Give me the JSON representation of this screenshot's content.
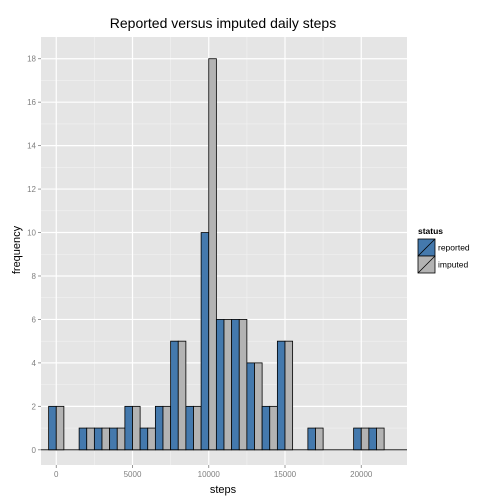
{
  "chart_data": {
    "type": "bar",
    "title": "Reported versus imputed daily steps",
    "xlabel": "steps",
    "ylabel": "frequency",
    "xlim": [
      -1000,
      23000
    ],
    "ylim": [
      -0.7,
      19.0
    ],
    "x_ticks": [
      0,
      5000,
      10000,
      15000,
      20000
    ],
    "y_ticks": [
      0,
      2,
      4,
      6,
      8,
      10,
      12,
      14,
      16,
      18
    ],
    "grid": true,
    "legend_position": "right",
    "legend_title": "status",
    "bin_width": 1000,
    "bin_centers": [
      0,
      1000,
      2000,
      3000,
      4000,
      5000,
      6000,
      7000,
      8000,
      9000,
      10000,
      11000,
      12000,
      13000,
      14000,
      15000,
      16000,
      17000,
      18000,
      19000,
      20000,
      21000,
      22000
    ],
    "series": [
      {
        "name": "reported",
        "color": "#4479ad",
        "values": [
          2,
          0,
          1,
          1,
          1,
          2,
          1,
          2,
          5,
          2,
          10,
          6,
          6,
          4,
          2,
          5,
          0,
          1,
          0,
          0,
          1,
          1,
          0
        ]
      },
      {
        "name": "imputed",
        "color": "#b3b3b3",
        "values": [
          2,
          0,
          1,
          1,
          1,
          2,
          1,
          2,
          5,
          2,
          18,
          6,
          6,
          4,
          2,
          5,
          0,
          1,
          0,
          0,
          1,
          1,
          0
        ]
      }
    ]
  },
  "colors": {
    "panel_background": "#e5e5e5",
    "grid_major": "#ffffff",
    "grid_minor": "#f2f2f2",
    "bar_outline": "#000000"
  }
}
